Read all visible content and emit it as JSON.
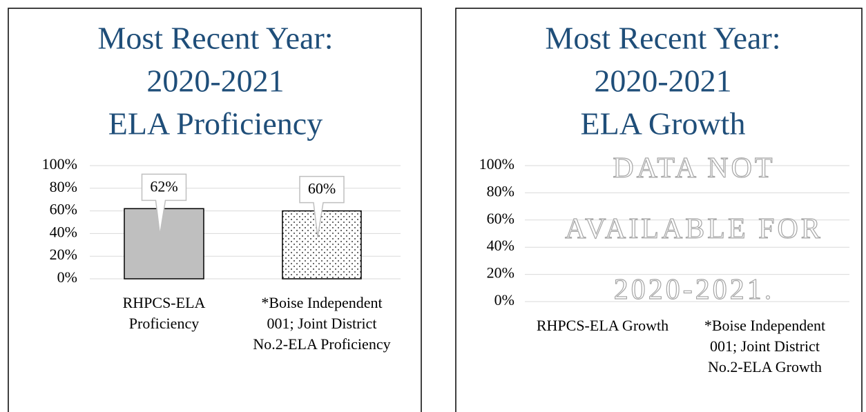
{
  "chart_data": [
    {
      "type": "bar",
      "title": [
        "Most Recent Year:",
        "2020-2021",
        "ELA Proficiency"
      ],
      "categories": [
        "RHPCS-ELA Proficiency",
        "*Boise Independent 001; Joint District No.2-ELA Proficiency"
      ],
      "values": [
        62,
        60
      ],
      "value_labels": [
        "62%",
        "60%"
      ],
      "colors": [
        "#bfbfbf",
        "dots"
      ],
      "ylim": [
        0,
        100
      ],
      "yticks": [
        {
          "value": 0,
          "label": "0%"
        },
        {
          "value": 20,
          "label": "20%"
        },
        {
          "value": 40,
          "label": "40%"
        },
        {
          "value": 60,
          "label": "60%"
        },
        {
          "value": 80,
          "label": "80%"
        },
        {
          "value": 100,
          "label": "100%"
        }
      ],
      "grid": true
    },
    {
      "type": "bar",
      "title": [
        "Most Recent Year:",
        "2020-2021",
        "ELA Growth"
      ],
      "categories": [
        "RHPCS-ELA Growth",
        "*Boise Independent 001; Joint District No.2-ELA Growth"
      ],
      "values": [
        null,
        null
      ],
      "annotation": "DATA NOT AVAILABLE FOR 2020-2021.",
      "ylim": [
        0,
        100
      ],
      "yticks": [
        {
          "value": 0,
          "label": "0%"
        },
        {
          "value": 20,
          "label": "20%"
        },
        {
          "value": 40,
          "label": "40%"
        },
        {
          "value": 60,
          "label": "60%"
        },
        {
          "value": 80,
          "label": "80%"
        },
        {
          "value": 100,
          "label": "100%"
        }
      ],
      "grid": true
    }
  ]
}
